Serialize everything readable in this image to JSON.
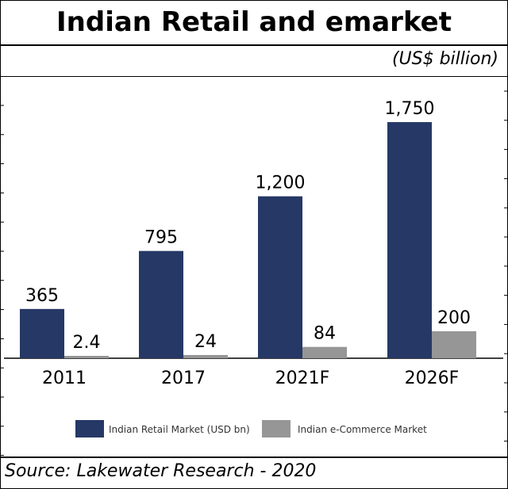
{
  "page_title": "Indian Retail and emarket",
  "units_label": "(US$ billion)",
  "source": "Source: Lakewater Research - 2020",
  "colors": {
    "retail": "#263866",
    "ecommerce": "#969696"
  },
  "chart_data": {
    "type": "bar",
    "categories": [
      "2011",
      "2017",
      "2021F",
      "2026F"
    ],
    "series": [
      {
        "name": "Indian Retail Market (USD bn)",
        "values": [
          365,
          795,
          1200,
          1750
        ],
        "labels": [
          "365",
          "795",
          "1,200",
          "1,750"
        ]
      },
      {
        "name": "Indian e-Commerce Market",
        "values": [
          2.4,
          24,
          84,
          200
        ],
        "labels": [
          "2.4",
          "24",
          "84",
          "200"
        ]
      }
    ],
    "ylim": [
      0,
      1950
    ],
    "grid": false,
    "legend": "bottom"
  }
}
